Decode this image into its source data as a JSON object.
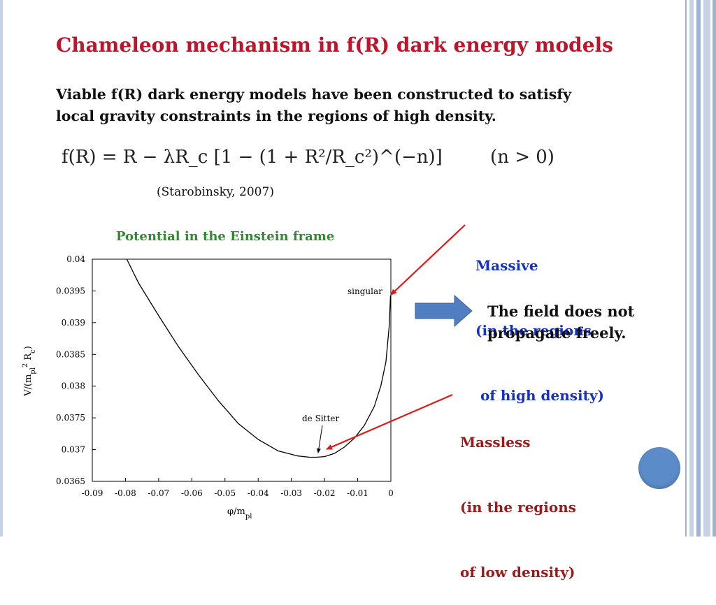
{
  "slide": {
    "title": "Chameleon mechanism in f(R) dark energy models",
    "intro_line1": "Viable f(R) dark energy models have been constructed to satisfy",
    "intro_line2": "local gravity constraints in the regions of high density.",
    "formula": "f(R) = R − λR_c [1 − (1 + R²/R_c²)^(−n)]",
    "formula_condition": "(n > 0)",
    "citation": "(Starobinsky, 2007)",
    "chart_title": "Potential in the Einstein frame",
    "massive_callout": [
      "Massive",
      "(in the regions",
      " of high density)"
    ],
    "massless_callout": [
      "Massless",
      "(in the regions",
      "of low density)"
    ],
    "field_note": [
      "The field does not",
      "propagate freely."
    ],
    "colors": {
      "title": "#c0142a",
      "chart_title": "#2e8b2e",
      "massive": "#1530c8",
      "massless": "#9a1b1b",
      "arrow": "#e01818",
      "block_arrow": "#4f7fc0"
    }
  },
  "chart_data": {
    "type": "line",
    "xlabel": "φ/m_pl",
    "ylabel": "V/(m_pl² R_c)",
    "xlim": [
      -0.09,
      0
    ],
    "ylim": [
      0.0365,
      0.04
    ],
    "x_ticks": [
      "-0.09",
      "-0.08",
      "-0.07",
      "-0.06",
      "-0.05",
      "-0.04",
      "-0.03",
      "-0.02",
      "-0.01",
      "0"
    ],
    "y_ticks": [
      "0.0365",
      "0.037",
      "0.0375",
      "0.038",
      "0.0385",
      "0.039",
      "0.0395",
      "0.04"
    ],
    "grid": false,
    "series": [
      {
        "x": [
          -0.0796,
          -0.076,
          -0.07,
          -0.064,
          -0.058,
          -0.052,
          -0.046,
          -0.04,
          -0.034,
          -0.028,
          -0.0245,
          -0.0225,
          -0.02,
          -0.017,
          -0.014,
          -0.011,
          -0.008,
          -0.005,
          -0.003,
          -0.0015,
          -0.0005,
          -0.0001
        ],
        "y": [
          0.04,
          0.03962,
          0.03911,
          0.03862,
          0.03818,
          0.03777,
          0.03741,
          0.03716,
          0.03698,
          0.0369,
          0.03688,
          0.03688,
          0.03689,
          0.03694,
          0.03704,
          0.03718,
          0.03738,
          0.03768,
          0.03801,
          0.03838,
          0.03894,
          0.03943
        ]
      }
    ],
    "annotations": [
      {
        "text": "singular",
        "x": -0.0005,
        "y": 0.03943
      },
      {
        "text": "de Sitter",
        "x": -0.0225,
        "y": 0.03688
      }
    ]
  }
}
